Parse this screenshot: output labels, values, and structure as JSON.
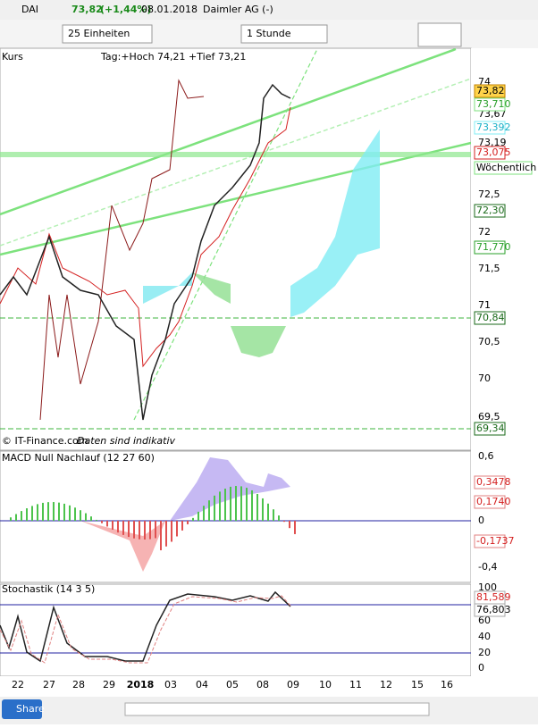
{
  "header": {
    "symbol": "DAI",
    "price": "73,82",
    "change": "(+1,44%)",
    "date": "08.01.2018",
    "name": "Daimler AG (-)"
  },
  "toolbar": {
    "units": "25 Einheiten",
    "interval": "1 Stunde"
  },
  "price_panel": {
    "label": "Kurs",
    "info": "Tag:+Hoch 74,21 +Tief 73,21",
    "copyright": "© IT-Finance.com",
    "disclaimer": "Daten sind indikativ",
    "axis_labels": [
      "74",
      "73,67",
      "73,19",
      "72,5",
      "72",
      "71,5",
      "71",
      "70,5",
      "70",
      "69,5"
    ],
    "markers": [
      "73,82",
      "73,710",
      "73,392",
      "73,075",
      "72,30",
      "71,770",
      "70,84",
      "69,34"
    ],
    "weekly": "Wöchentlich"
  },
  "macd_panel": {
    "label": "MACD Null Nachlauf (12 27 60)",
    "axis_labels": [
      "0,6",
      "0",
      "-0,4"
    ],
    "markers": [
      "0,3478",
      "0,1740",
      "-0,1737"
    ]
  },
  "stoch_panel": {
    "label": "Stochastik (14 3 5)",
    "axis_labels": [
      "100",
      "60",
      "40",
      "20",
      "0"
    ],
    "markers": [
      "81,589",
      "76,803"
    ]
  },
  "x_axis": {
    "labels": [
      "22",
      "27",
      "28",
      "29",
      "2018",
      "03",
      "04",
      "05",
      "08",
      "09",
      "10",
      "11",
      "12",
      "15",
      "16"
    ]
  },
  "footer": {
    "share": "Share"
  }
}
